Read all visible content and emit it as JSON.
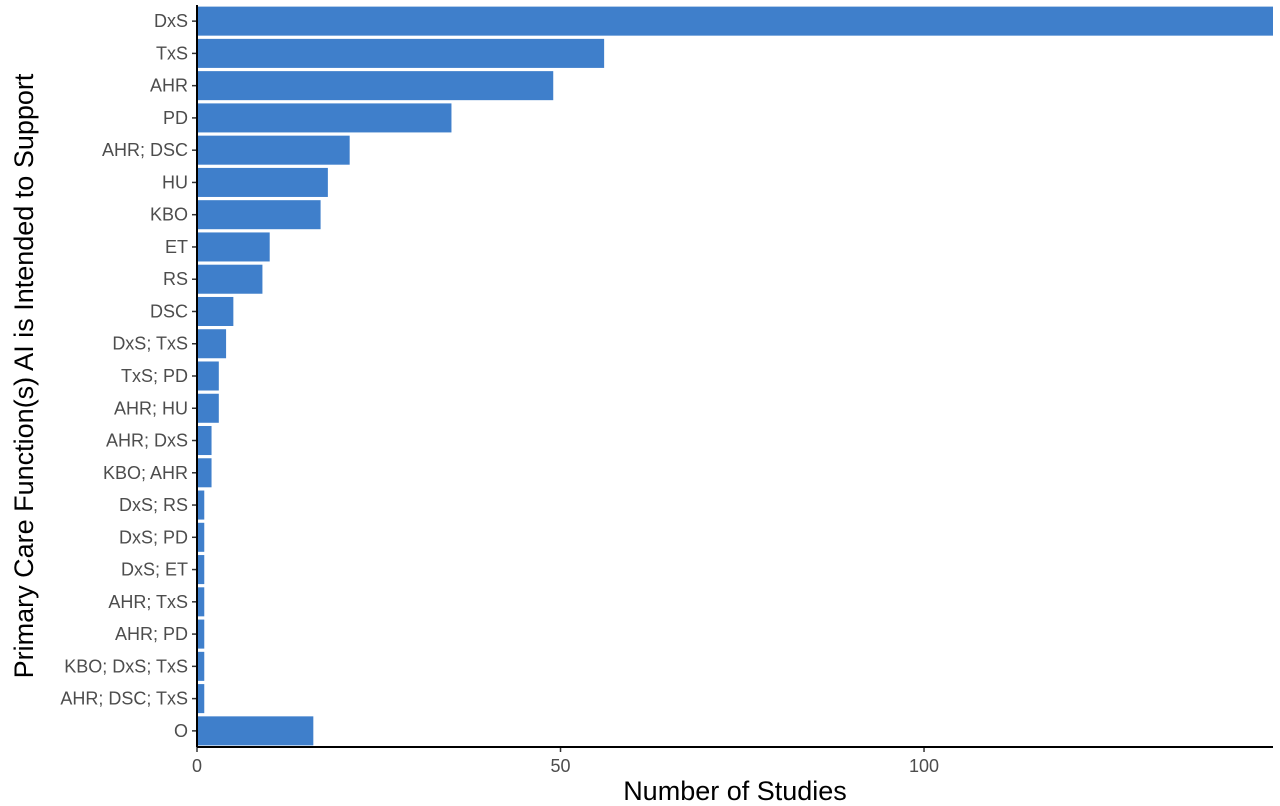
{
  "chart_data": {
    "type": "bar",
    "orientation": "horizontal",
    "xlabel": "Number of Studies",
    "ylabel": "Primary Care Function(s) AI is Intended to Support",
    "xlim": [
      0,
      148
    ],
    "xticks": [
      0,
      50,
      100
    ],
    "grid": false,
    "bar_color": "#3f7fcb",
    "categories": [
      "DxS",
      "TxS",
      "AHR",
      "PD",
      "AHR; DSC",
      "HU",
      "KBO",
      "ET",
      "RS",
      "DSC",
      "DxS; TxS",
      "TxS; PD",
      "AHR; HU",
      "AHR; DxS",
      "KBO; AHR",
      "DxS; RS",
      "DxS; PD",
      "DxS; ET",
      "AHR; TxS",
      "AHR; PD",
      "KBO; DxS; TxS",
      "AHR; DSC; TxS",
      "O"
    ],
    "values": [
      148,
      56,
      49,
      35,
      21,
      18,
      17,
      10,
      9,
      5,
      4,
      3,
      3,
      2,
      2,
      1,
      1,
      1,
      1,
      1,
      1,
      1,
      16
    ]
  }
}
